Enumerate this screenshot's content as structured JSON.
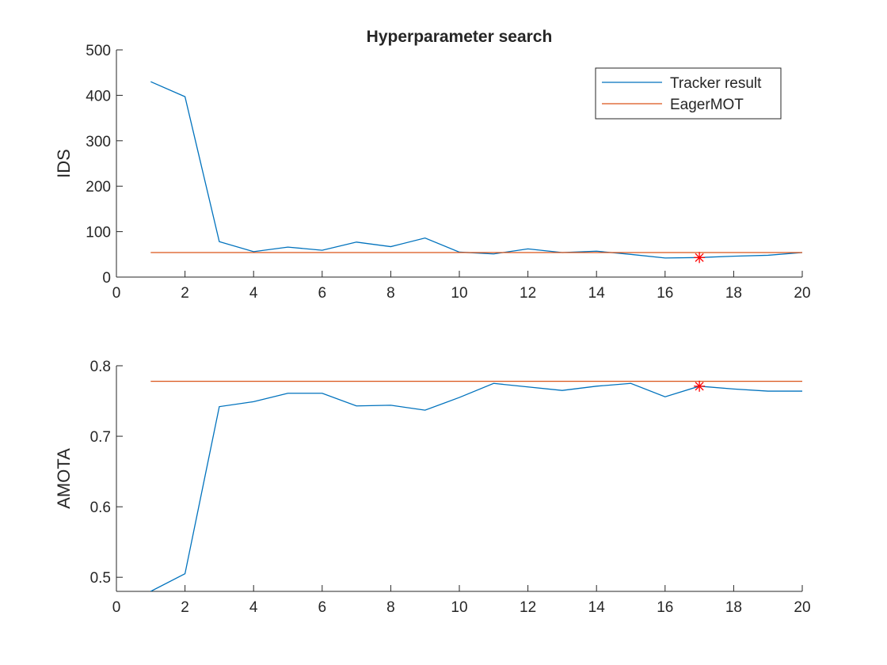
{
  "chart_data": [
    {
      "type": "line",
      "title": "Hyperparameter search",
      "xlabel": "",
      "ylabel": "IDS",
      "xlim": [
        0,
        20
      ],
      "ylim": [
        0,
        500
      ],
      "xticks": [
        0,
        2,
        4,
        6,
        8,
        10,
        12,
        14,
        16,
        18,
        20
      ],
      "yticks": [
        0,
        100,
        200,
        300,
        400,
        500
      ],
      "grid": false,
      "legend": "top-right",
      "series": [
        {
          "name": "Tracker result",
          "color": "#0072BD",
          "x": [
            1,
            2,
            3,
            4,
            5,
            6,
            7,
            8,
            9,
            10,
            11,
            12,
            13,
            14,
            15,
            16,
            17,
            18,
            19,
            20
          ],
          "y": [
            430,
            397,
            78,
            56,
            66,
            59,
            77,
            67,
            86,
            55,
            51,
            62,
            54,
            57,
            50,
            42,
            43,
            46,
            48,
            54
          ]
        },
        {
          "name": "EagerMOT",
          "color": "#D95319",
          "x": [
            1,
            20
          ],
          "y": [
            54,
            54
          ]
        }
      ],
      "annotations": [
        {
          "type": "marker",
          "symbol": "asterisk",
          "color": "#FF0000",
          "x": 17,
          "y": 43
        }
      ]
    },
    {
      "type": "line",
      "title": "",
      "xlabel": "",
      "ylabel": "AMOTA",
      "xlim": [
        0,
        20
      ],
      "ylim": [
        0.48,
        0.8
      ],
      "xticks": [
        0,
        2,
        4,
        6,
        8,
        10,
        12,
        14,
        16,
        18,
        20
      ],
      "yticks": [
        0.5,
        0.6,
        0.7,
        0.8
      ],
      "grid": false,
      "series": [
        {
          "color": "#0072BD",
          "x": [
            1,
            2,
            3,
            4,
            5,
            6,
            7,
            8,
            9,
            10,
            11,
            12,
            13,
            14,
            15,
            16,
            17,
            18,
            19,
            20
          ],
          "y": [
            0.48,
            0.505,
            0.742,
            0.749,
            0.761,
            0.761,
            0.743,
            0.744,
            0.737,
            0.755,
            0.775,
            0.77,
            0.765,
            0.771,
            0.775,
            0.756,
            0.771,
            0.767,
            0.764,
            0.764
          ]
        },
        {
          "color": "#D95319",
          "x": [
            1,
            20
          ],
          "y": [
            0.778,
            0.778
          ]
        }
      ],
      "annotations": [
        {
          "type": "marker",
          "symbol": "asterisk",
          "color": "#FF0000",
          "x": 17,
          "y": 0.771
        }
      ]
    }
  ]
}
